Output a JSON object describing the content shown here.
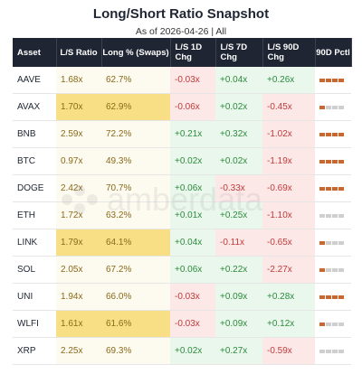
{
  "header": {
    "title": "Long/Short Ratio Snapshot",
    "subtitle": "As of 2026-04-26 | All"
  },
  "columns": [
    "Asset",
    "L/S Ratio",
    "Long % (Swaps)",
    "L/S 1D Chg",
    "L/S 7D Chg",
    "L/S 90D Chg",
    "90D Pctl"
  ],
  "watermark_text": "amberdata",
  "colors": {
    "header_bg": "#1f2533",
    "neg_bg": "#fde8e8",
    "pos_bg": "#e9f7ec",
    "neutral_bg": "#fdfaf0",
    "highlight_bg": "#f8df86",
    "pctl_on": "#c9672f",
    "pctl_off": "#cfcfcf"
  },
  "chart_data": {
    "type": "table",
    "rows": [
      {
        "asset": "AAVE",
        "ratio": "1.68x",
        "long": "62.7%",
        "d1": "-0.03x",
        "d7": "+0.04x",
        "d90": "+0.26x",
        "pctl": 4,
        "highlight": false
      },
      {
        "asset": "AVAX",
        "ratio": "1.70x",
        "long": "62.9%",
        "d1": "-0.06x",
        "d7": "+0.02x",
        "d90": "-0.45x",
        "pctl": 1,
        "highlight": true
      },
      {
        "asset": "BNB",
        "ratio": "2.59x",
        "long": "72.2%",
        "d1": "+0.21x",
        "d7": "+0.32x",
        "d90": "-1.02x",
        "pctl": 4,
        "highlight": false
      },
      {
        "asset": "BTC",
        "ratio": "0.97x",
        "long": "49.3%",
        "d1": "+0.02x",
        "d7": "+0.02x",
        "d90": "-1.19x",
        "pctl": 4,
        "highlight": false
      },
      {
        "asset": "DOGE",
        "ratio": "2.42x",
        "long": "70.7%",
        "d1": "+0.06x",
        "d7": "-0.33x",
        "d90": "-0.69x",
        "pctl": 4,
        "highlight": false
      },
      {
        "asset": "ETH",
        "ratio": "1.72x",
        "long": "63.2%",
        "d1": "+0.01x",
        "d7": "+0.25x",
        "d90": "-1.10x",
        "pctl": 0,
        "highlight": false
      },
      {
        "asset": "LINK",
        "ratio": "1.79x",
        "long": "64.1%",
        "d1": "+0.04x",
        "d7": "-0.11x",
        "d90": "-0.65x",
        "pctl": 1,
        "highlight": true
      },
      {
        "asset": "SOL",
        "ratio": "2.05x",
        "long": "67.2%",
        "d1": "+0.06x",
        "d7": "+0.22x",
        "d90": "-2.27x",
        "pctl": 1,
        "highlight": false
      },
      {
        "asset": "UNI",
        "ratio": "1.94x",
        "long": "66.0%",
        "d1": "-0.03x",
        "d7": "+0.09x",
        "d90": "+0.28x",
        "pctl": 4,
        "highlight": false
      },
      {
        "asset": "WLFI",
        "ratio": "1.61x",
        "long": "61.6%",
        "d1": "-0.03x",
        "d7": "+0.09x",
        "d90": "+0.12x",
        "pctl": 1,
        "highlight": true
      },
      {
        "asset": "XRP",
        "ratio": "2.25x",
        "long": "69.3%",
        "d1": "+0.02x",
        "d7": "+0.27x",
        "d90": "-0.59x",
        "pctl": 0,
        "highlight": false
      }
    ]
  }
}
